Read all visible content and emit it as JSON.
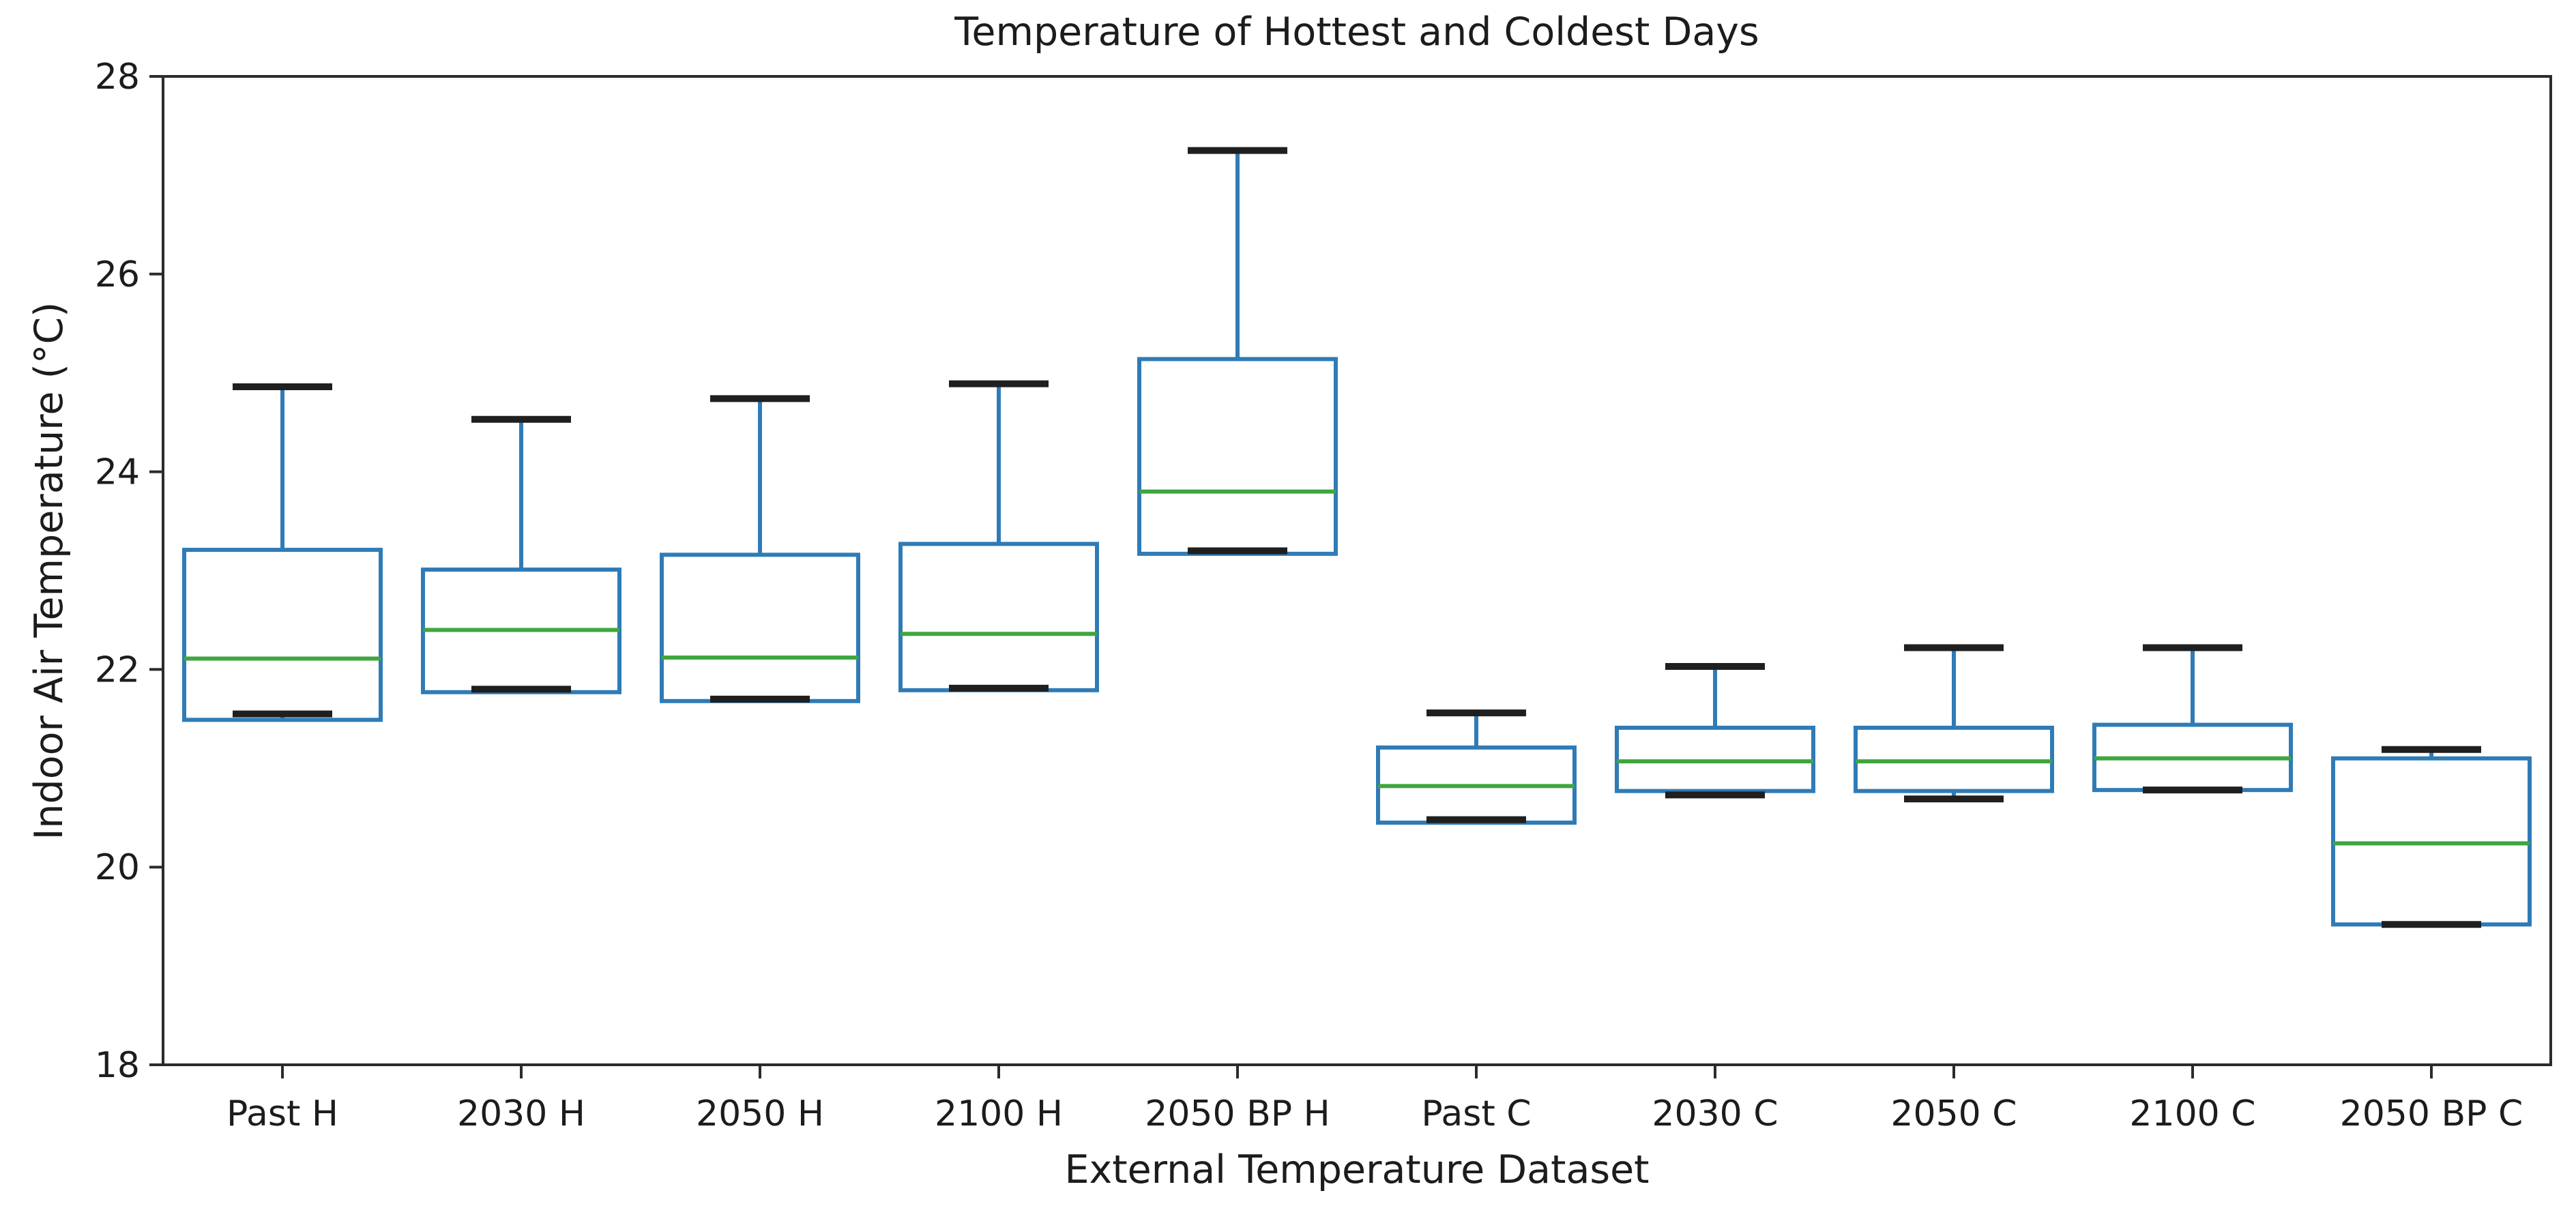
{
  "figure": {
    "title": "Temperature of Hottest and Coldest Days",
    "xlabel": "External Temperature Dataset",
    "ylabel": "Indoor Air Temperature (°C)"
  },
  "chart_data": {
    "type": "boxplot",
    "title": "Temperature of Hottest and Coldest Days",
    "xlabel": "External Temperature Dataset",
    "ylabel": "Indoor Air Temperature (°C)",
    "ylim": [
      18,
      28
    ],
    "yticks": [
      18,
      20,
      22,
      24,
      26,
      28
    ],
    "grid": false,
    "legend": null,
    "categories": [
      "Past H",
      "2030 H",
      "2050 H",
      "2100 H",
      "2050 BP H",
      "Past C",
      "2030 C",
      "2050 C",
      "2100 C",
      "2050 BP C"
    ],
    "series": [
      {
        "name": "Past H",
        "whislo": 21.55,
        "q1": 21.49,
        "med": 22.11,
        "q3": 23.21,
        "whishi": 24.86
      },
      {
        "name": "2030 H",
        "whislo": 21.8,
        "q1": 21.77,
        "med": 22.4,
        "q3": 23.01,
        "whishi": 24.53
      },
      {
        "name": "2050 H",
        "whislo": 21.7,
        "q1": 21.68,
        "med": 22.12,
        "q3": 23.16,
        "whishi": 24.74
      },
      {
        "name": "2100 H",
        "whislo": 21.81,
        "q1": 21.79,
        "med": 22.36,
        "q3": 23.27,
        "whishi": 24.89
      },
      {
        "name": "2050 BP H",
        "whislo": 23.2,
        "q1": 23.17,
        "med": 23.8,
        "q3": 25.14,
        "whishi": 27.25
      },
      {
        "name": "Past C",
        "whislo": 20.48,
        "q1": 20.45,
        "med": 20.82,
        "q3": 21.21,
        "whishi": 21.56
      },
      {
        "name": "2030 C",
        "whislo": 20.73,
        "q1": 20.77,
        "med": 21.07,
        "q3": 21.41,
        "whishi": 22.03
      },
      {
        "name": "2050 C",
        "whislo": 20.69,
        "q1": 20.77,
        "med": 21.07,
        "q3": 21.41,
        "whishi": 22.22
      },
      {
        "name": "2100 C",
        "whislo": 20.78,
        "q1": 20.78,
        "med": 21.1,
        "q3": 21.44,
        "whishi": 22.22
      },
      {
        "name": "2050 BP C",
        "whislo": 19.42,
        "q1": 19.42,
        "med": 20.24,
        "q3": 21.1,
        "whishi": 21.19
      }
    ],
    "colors": {
      "box": "#2f7bb6",
      "whisker": "#2f7bb6",
      "median": "#3fa63f",
      "cap": "#1f1f1f",
      "spine": "#2b2b2b",
      "text": "#1c1c1c",
      "background": "#ffffff"
    }
  }
}
